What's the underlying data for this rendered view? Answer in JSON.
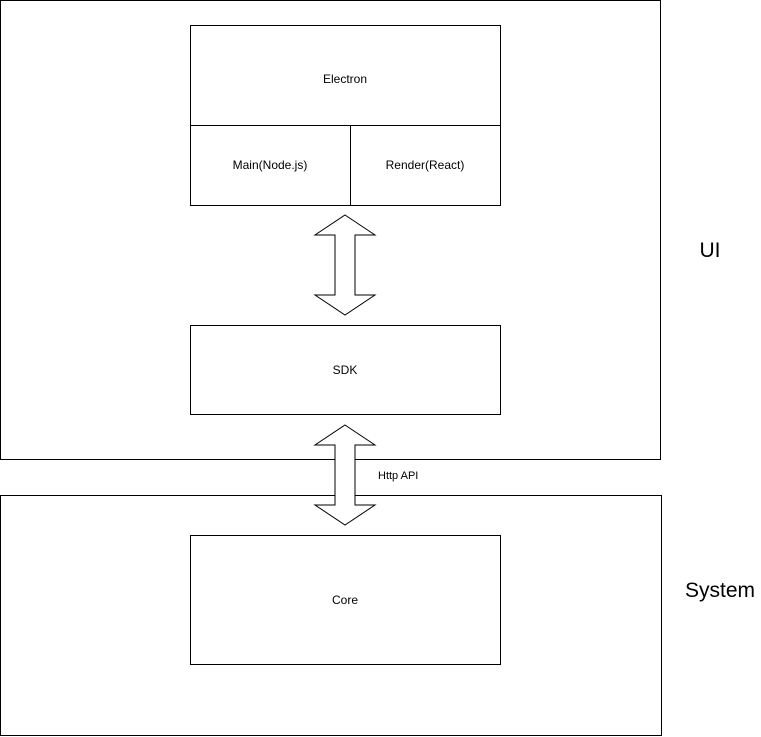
{
  "layers": {
    "ui": {
      "label": "UI"
    },
    "system": {
      "label": "System"
    }
  },
  "nodes": {
    "electron": {
      "label": "Electron"
    },
    "main": {
      "label": "Main(Node.js)"
    },
    "render": {
      "label": "Render(React)"
    },
    "sdk": {
      "label": "SDK"
    },
    "core": {
      "label": "Core"
    }
  },
  "edges": {
    "electron_sdk": {
      "label": ""
    },
    "sdk_core": {
      "label": "Http API"
    }
  },
  "colors": {
    "stroke": "#000000",
    "fill": "#ffffff",
    "text": "#000000"
  }
}
